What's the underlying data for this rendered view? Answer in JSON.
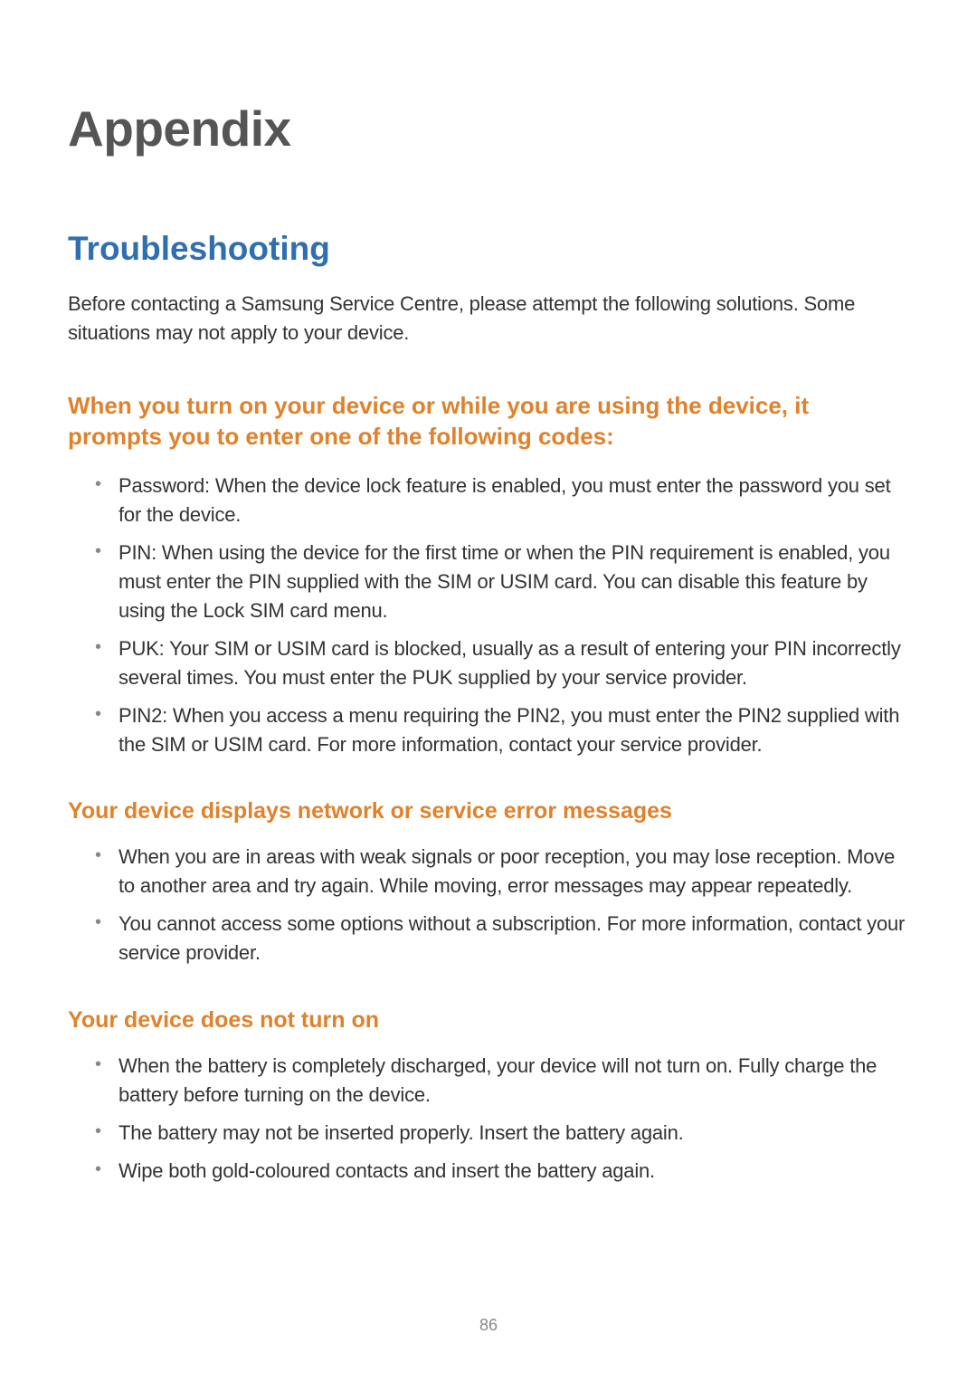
{
  "colors": {
    "body_text": "#333333",
    "h1_text": "#555555",
    "accent_blue": "#2f6fb0",
    "accent_orange": "#e0812b",
    "bullet_gray": "#888888",
    "page_number": "#888888",
    "background": "#ffffff"
  },
  "typography": {
    "h1_fontsize": 55,
    "h2_fontsize": 37,
    "h3_fontsize": 26,
    "h4_fontsize": 25,
    "body_fontsize": 22,
    "page_number_fontsize": 18
  },
  "heading": "Appendix",
  "section_title": "Troubleshooting",
  "intro": "Before contacting a Samsung Service Centre, please attempt the following solutions. Some situations may not apply to your device.",
  "sub1": {
    "title": "When you turn on your device or while you are using the device, it prompts you to enter one of the following codes:",
    "items": [
      "Password: When the device lock feature is enabled, you must enter the password you set for the device.",
      "PIN: When using the device for the first time or when the PIN requirement is enabled, you must enter the PIN supplied with the SIM or USIM card. You can disable this feature by using the Lock SIM card menu.",
      "PUK: Your SIM or USIM card is blocked, usually as a result of entering your PIN incorrectly several times. You must enter the PUK supplied by your service provider.",
      "PIN2: When you access a menu requiring the PIN2, you must enter the PIN2 supplied with the SIM or USIM card. For more information, contact your service provider."
    ]
  },
  "sub2": {
    "title": "Your device displays network or service error messages",
    "items": [
      "When you are in areas with weak signals or poor reception, you may lose reception. Move to another area and try again. While moving, error messages may appear repeatedly.",
      "You cannot access some options without a subscription. For more information, contact your service provider."
    ]
  },
  "sub3": {
    "title": "Your device does not turn on",
    "items": [
      "When the battery is completely discharged, your device will not turn on. Fully charge the battery before turning on the device.",
      "The battery may not be inserted properly. Insert the battery again.",
      "Wipe both gold-coloured contacts and insert the battery again."
    ]
  },
  "page_number": "86"
}
